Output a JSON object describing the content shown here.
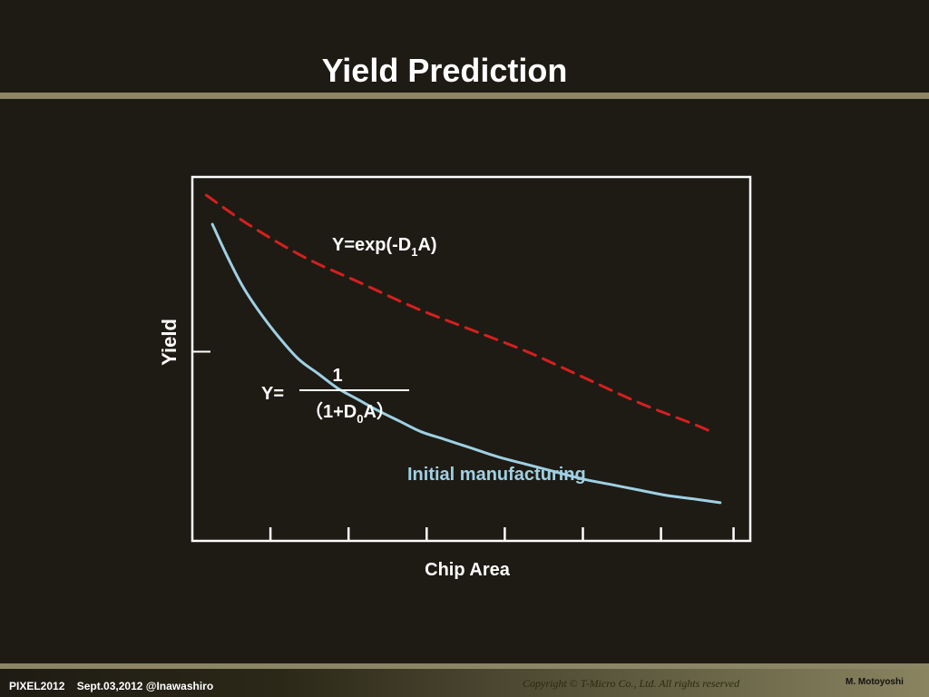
{
  "slide": {
    "title": "Yield Prediction"
  },
  "footer": {
    "event": "PIXEL2012",
    "date_place": "Sept.03,2012 @Inawashiro",
    "copyright": "Copyright © T-Micro Co., Ltd.  All rights reserved",
    "author": "M. Motoyoshi"
  },
  "chart_data": {
    "type": "line",
    "title": "",
    "xlabel": "Chip Area",
    "ylabel": "Yield",
    "xlim": [
      0,
      1
    ],
    "ylim": [
      0,
      1
    ],
    "x_ticks": [
      0.14,
      0.28,
      0.42,
      0.56,
      0.7,
      0.84,
      0.97
    ],
    "y_ticks": [
      0.52
    ],
    "grid": false,
    "legend": "none",
    "series": [
      {
        "name": "Initial manufacturing",
        "style": "solid",
        "color": "#9fd0e4",
        "x": [
          0.036,
          0.06,
          0.09,
          0.12,
          0.155,
          0.19,
          0.225,
          0.26,
          0.295,
          0.33,
          0.37,
          0.41,
          0.45,
          0.5,
          0.55,
          0.6,
          0.65,
          0.7,
          0.75,
          0.8,
          0.85,
          0.9,
          0.946
        ],
        "y": [
          0.87,
          0.79,
          0.7,
          0.63,
          0.56,
          0.5,
          0.46,
          0.42,
          0.39,
          0.36,
          0.33,
          0.3,
          0.28,
          0.255,
          0.23,
          0.21,
          0.19,
          0.17,
          0.155,
          0.14,
          0.125,
          0.115,
          0.105
        ]
      },
      {
        "name": "Y=exp(-D1A)",
        "style": "dashed",
        "color": "#d42020",
        "x": [
          0.025,
          0.1,
          0.2,
          0.3,
          0.4,
          0.5,
          0.6,
          0.7,
          0.8,
          0.9,
          0.93
        ],
        "y": [
          0.95,
          0.87,
          0.78,
          0.71,
          0.64,
          0.58,
          0.52,
          0.45,
          0.38,
          0.32,
          0.3
        ]
      }
    ],
    "annotations": {
      "exp_formula": {
        "prefix": "Y=exp(-D",
        "sub": "1",
        "suffix": "A)"
      },
      "frac_formula": {
        "lhs": "Y=",
        "numerator": "1",
        "denom_prefix": "（1+D",
        "denom_sub": "0",
        "denom_suffix": "A）"
      },
      "curve_label": "Initial manufacturing"
    }
  }
}
